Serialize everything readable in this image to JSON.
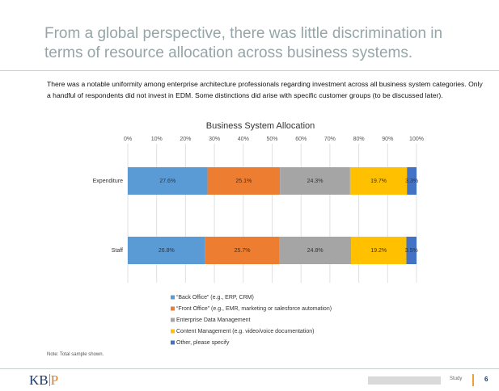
{
  "header": {
    "title": "From a global perspective, there was little discrimination in terms of resource allocation across business systems."
  },
  "body": "There was a notable uniformity among enterprise architecture professionals regarding investment across all business system categories.  Only a handful of respondents did not invest in EDM.  Some distinctions did arise with specific customer groups (to be discussed later).",
  "chart_data": {
    "type": "stacked-barh",
    "title": "Business System Allocation",
    "categories": [
      "Expenditure",
      "Staff"
    ],
    "series": [
      {
        "name": "“Back Office” (e.g., ERP, CRM)",
        "color": "#5b9bd5",
        "values": [
          27.6,
          26.8
        ],
        "value_labels": [
          "27.6%",
          "26.8%"
        ]
      },
      {
        "name": "“Front Office” (e.g., EMR, marketing or salesforce automation)",
        "color": "#ed7d31",
        "values": [
          25.1,
          25.7
        ],
        "value_labels": [
          "25.1%",
          "25.7%"
        ]
      },
      {
        "name": "Enterprise Data Management",
        "color": "#a5a5a5",
        "values": [
          24.3,
          24.8
        ],
        "value_labels": [
          "24.3%",
          "24.8%"
        ]
      },
      {
        "name": "Content Management (e.g. video/voice documentation)",
        "color": "#ffc000",
        "values": [
          19.7,
          19.2
        ],
        "value_labels": [
          "19.7%",
          "19.2%"
        ]
      },
      {
        "name": "Other, please specify",
        "color": "#4472c4",
        "values": [
          3.3,
          3.5
        ],
        "value_labels": [
          "3.3%",
          "3.5%"
        ]
      }
    ],
    "xlim": [
      0,
      100
    ],
    "xticks": [
      {
        "value": 0,
        "label": "0%"
      },
      {
        "value": 10,
        "label": "10%"
      },
      {
        "value": 20,
        "label": "20%"
      },
      {
        "value": 30,
        "label": "30%"
      },
      {
        "value": 40,
        "label": "40%"
      },
      {
        "value": 50,
        "label": "50%"
      },
      {
        "value": 60,
        "label": "60%"
      },
      {
        "value": 70,
        "label": "70%"
      },
      {
        "value": 80,
        "label": "80%"
      },
      {
        "value": 90,
        "label": "90%"
      },
      {
        "value": 100,
        "label": "100%"
      }
    ],
    "grid": true,
    "legend": "bottom"
  },
  "note": "Note:  Total sample shown.",
  "footer": {
    "logo_left": "KB",
    "logo_right": "P",
    "label": "Study",
    "page": "6"
  }
}
